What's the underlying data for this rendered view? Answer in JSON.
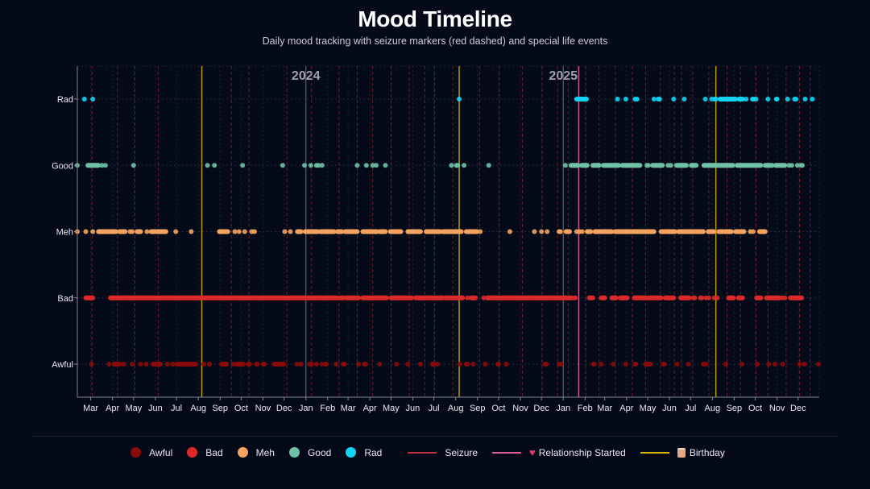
{
  "header": {
    "title": "Mood Timeline",
    "subtitle": "Daily mood tracking with seizure markers (red dashed) and special life events"
  },
  "chart_data": {
    "type": "scatter",
    "title": "Mood Timeline",
    "subtitle": "Daily mood tracking with seizure markers (red dashed) and special life events",
    "x_range": [
      "2023-02-10",
      "2025-12-31"
    ],
    "y_categories": [
      "Awful",
      "Bad",
      "Meh",
      "Good",
      "Rad"
    ],
    "x_tick_labels": [
      "Mar",
      "Apr",
      "May",
      "Jun",
      "Jul",
      "Aug",
      "Sep",
      "Oct",
      "Nov",
      "Dec",
      "Jan",
      "Feb",
      "Mar",
      "Apr",
      "May",
      "Jun",
      "Jul",
      "Aug",
      "Sep",
      "Oct",
      "Nov",
      "Dec",
      "Jan",
      "Feb",
      "Mar",
      "Apr",
      "May",
      "Jun",
      "Jul",
      "Aug",
      "Sep",
      "Oct",
      "Nov",
      "Dec"
    ],
    "x_ticks": [
      "2023-03-01",
      "2023-04-01",
      "2023-05-01",
      "2023-06-01",
      "2023-07-01",
      "2023-08-01",
      "2023-09-01",
      "2023-10-01",
      "2023-11-01",
      "2023-12-01",
      "2024-01-01",
      "2024-02-01",
      "2024-03-01",
      "2024-04-01",
      "2024-05-01",
      "2024-06-01",
      "2024-07-01",
      "2024-08-01",
      "2024-09-01",
      "2024-10-01",
      "2024-11-01",
      "2024-12-01",
      "2025-01-01",
      "2025-02-01",
      "2025-03-01",
      "2025-04-01",
      "2025-05-01",
      "2025-06-01",
      "2025-07-01",
      "2025-08-01",
      "2025-09-01",
      "2025-10-01",
      "2025-11-01",
      "2025-12-01"
    ],
    "year_markers": [
      {
        "label": "2024",
        "date": "2024-01-01"
      },
      {
        "label": "2025",
        "date": "2025-01-01"
      }
    ],
    "colors": {
      "Awful": "#8b0a0a",
      "Bad": "#dc2a2a",
      "Meh": "#f4a460",
      "Good": "#6fc2a6",
      "Rad": "#13d4f5",
      "Seizure": "#c0303a",
      "Relationship": "#e0609a",
      "Birthday": "#c9a800"
    },
    "series": [
      {
        "name": "Rad",
        "points_day_ranges": [
          [
            10,
            10
          ],
          [
            22,
            22
          ],
          [
            543,
            543
          ],
          [
            710,
            724
          ],
          [
            768,
            768
          ],
          [
            780,
            780
          ],
          [
            793,
            796
          ],
          [
            820,
            820
          ],
          [
            826,
            828
          ],
          [
            848,
            848
          ],
          [
            863,
            863
          ],
          [
            893,
            893
          ],
          [
            902,
            902
          ],
          [
            906,
            908
          ],
          [
            914,
            936
          ],
          [
            941,
            946
          ],
          [
            951,
            951
          ],
          [
            960,
            960
          ],
          [
            962,
            965
          ],
          [
            982,
            982
          ],
          [
            994,
            995
          ],
          [
            1010,
            1010
          ],
          [
            1020,
            1022
          ],
          [
            1035,
            1035
          ],
          [
            1045,
            1045
          ],
          [
            1064,
            1064
          ],
          [
            1094,
            1094
          ]
        ]
      },
      {
        "name": "Good",
        "points_day_ranges": [
          [
            0,
            0
          ],
          [
            15,
            30
          ],
          [
            35,
            35
          ],
          [
            40,
            40
          ],
          [
            80,
            80
          ],
          [
            185,
            185
          ],
          [
            195,
            195
          ],
          [
            235,
            235
          ],
          [
            292,
            292
          ],
          [
            323,
            323
          ],
          [
            332,
            332
          ],
          [
            340,
            343
          ],
          [
            348,
            348
          ],
          [
            398,
            398
          ],
          [
            411,
            411
          ],
          [
            420,
            420
          ],
          [
            425,
            425
          ],
          [
            438,
            438
          ],
          [
            532,
            532
          ],
          [
            539,
            541
          ],
          [
            550,
            550
          ],
          [
            585,
            585
          ],
          [
            694,
            694
          ],
          [
            702,
            712
          ],
          [
            717,
            725
          ],
          [
            733,
            742
          ],
          [
            748,
            770
          ],
          [
            775,
            800
          ],
          [
            810,
            812
          ],
          [
            818,
            832
          ],
          [
            840,
            844
          ],
          [
            852,
            866
          ],
          [
            873,
            880
          ],
          [
            891,
            932
          ],
          [
            938,
            972
          ],
          [
            978,
            988
          ],
          [
            993,
            1006
          ],
          [
            1012,
            1016
          ],
          [
            1024,
            1024
          ],
          [
            1029,
            1031
          ]
        ]
      },
      {
        "name": "Meh",
        "points_day_ranges": [
          [
            0,
            0
          ],
          [
            12,
            12
          ],
          [
            22,
            22
          ],
          [
            30,
            55
          ],
          [
            60,
            68
          ],
          [
            75,
            78
          ],
          [
            85,
            90
          ],
          [
            99,
            99
          ],
          [
            105,
            110
          ],
          [
            113,
            126
          ],
          [
            140,
            140
          ],
          [
            162,
            162
          ],
          [
            202,
            214
          ],
          [
            224,
            224
          ],
          [
            230,
            230
          ],
          [
            238,
            238
          ],
          [
            248,
            252
          ],
          [
            295,
            295
          ],
          [
            303,
            303
          ],
          [
            313,
            318
          ],
          [
            324,
            342
          ],
          [
            346,
            365
          ],
          [
            370,
            376
          ],
          [
            381,
            398
          ],
          [
            406,
            426
          ],
          [
            430,
            438
          ],
          [
            445,
            460
          ],
          [
            470,
            488
          ],
          [
            496,
            516
          ],
          [
            520,
            546
          ],
          [
            553,
            568
          ],
          [
            573,
            573
          ],
          [
            615,
            615
          ],
          [
            650,
            650
          ],
          [
            660,
            660
          ],
          [
            668,
            668
          ],
          [
            685,
            687
          ],
          [
            695,
            700
          ],
          [
            710,
            714
          ],
          [
            718,
            718
          ],
          [
            725,
            730
          ],
          [
            736,
            760
          ],
          [
            765,
            820
          ],
          [
            830,
            850
          ],
          [
            855,
            890
          ],
          [
            897,
            905
          ],
          [
            912,
            918
          ],
          [
            921,
            930
          ],
          [
            936,
            948
          ],
          [
            957,
            961
          ],
          [
            970,
            978
          ]
        ]
      },
      {
        "name": "Bad",
        "points_day_ranges": [
          [
            12,
            22
          ],
          [
            47,
            370
          ],
          [
            374,
            379
          ],
          [
            383,
            400
          ],
          [
            406,
            440
          ],
          [
            446,
            475
          ],
          [
            481,
            520
          ],
          [
            524,
            548
          ],
          [
            555,
            555
          ],
          [
            560,
            566
          ],
          [
            578,
            578
          ],
          [
            583,
            600
          ],
          [
            602,
            703
          ],
          [
            707,
            708
          ],
          [
            728,
            733
          ],
          [
            745,
            750
          ],
          [
            760,
            766
          ],
          [
            772,
            782
          ],
          [
            792,
            808
          ],
          [
            812,
            830
          ],
          [
            836,
            848
          ],
          [
            858,
            870
          ],
          [
            876,
            878
          ],
          [
            886,
            888
          ],
          [
            894,
            898
          ],
          [
            906,
            910
          ],
          [
            926,
            933
          ],
          [
            940,
            946
          ],
          [
            966,
            972
          ],
          [
            980,
            998
          ],
          [
            1002,
            1006
          ],
          [
            1014,
            1030
          ]
        ]
      },
      {
        "name": "Awful",
        "points_day_ranges": [
          [
            20,
            20
          ],
          [
            45,
            45
          ],
          [
            52,
            60
          ],
          [
            66,
            66
          ],
          [
            78,
            78
          ],
          [
            90,
            90
          ],
          [
            98,
            98
          ],
          [
            108,
            118
          ],
          [
            128,
            128
          ],
          [
            136,
            136
          ],
          [
            142,
            168
          ],
          [
            180,
            180
          ],
          [
            188,
            188
          ],
          [
            205,
            212
          ],
          [
            222,
            222
          ],
          [
            227,
            236
          ],
          [
            243,
            245
          ],
          [
            255,
            256
          ],
          [
            264,
            266
          ],
          [
            280,
            290
          ],
          [
            292,
            294
          ],
          [
            312,
            312
          ],
          [
            318,
            318
          ],
          [
            330,
            333
          ],
          [
            340,
            340
          ],
          [
            348,
            348
          ],
          [
            353,
            354
          ],
          [
            368,
            368
          ],
          [
            378,
            380
          ],
          [
            400,
            400
          ],
          [
            408,
            410
          ],
          [
            430,
            430
          ],
          [
            454,
            454
          ],
          [
            470,
            470
          ],
          [
            488,
            488
          ],
          [
            505,
            507
          ],
          [
            512,
            512
          ],
          [
            544,
            544
          ],
          [
            553,
            555
          ],
          [
            563,
            563
          ],
          [
            580,
            580
          ],
          [
            598,
            599
          ],
          [
            610,
            610
          ],
          [
            665,
            667
          ],
          [
            685,
            688
          ],
          [
            734,
            735
          ],
          [
            745,
            745
          ],
          [
            762,
            762
          ],
          [
            780,
            780
          ],
          [
            793,
            794
          ],
          [
            808,
            815
          ],
          [
            833,
            835
          ],
          [
            853,
            853
          ],
          [
            869,
            869
          ],
          [
            890,
            894
          ],
          [
            922,
            922
          ],
          [
            945,
            945
          ],
          [
            967,
            967
          ],
          [
            983,
            983
          ],
          [
            992,
            992
          ],
          [
            1003,
            1003
          ],
          [
            1027,
            1027
          ],
          [
            1034,
            1034
          ],
          [
            1054,
            1054
          ],
          [
            1064,
            1064
          ],
          [
            1081,
            1081
          ],
          [
            1097,
            1097
          ],
          [
            1112,
            1116
          ],
          [
            1131,
            1131
          ],
          [
            1145,
            1145
          ],
          [
            1155,
            1155
          ]
        ]
      }
    ],
    "seizure_dates": [
      "2023-03-03",
      "2023-04-08",
      "2023-05-03",
      "2023-06-05",
      "2023-09-17",
      "2023-10-12",
      "2023-12-05",
      "2024-01-09",
      "2024-02-17",
      "2024-03-14",
      "2024-04-05",
      "2024-05-01",
      "2024-05-27",
      "2024-06-18",
      "2024-07-02",
      "2024-07-28",
      "2024-09-04",
      "2024-10-02",
      "2024-11-04",
      "2024-12-02",
      "2024-12-24",
      "2025-01-08",
      "2025-02-02",
      "2025-02-21",
      "2025-03-16",
      "2025-04-09",
      "2025-04-28",
      "2025-05-19",
      "2025-06-08",
      "2025-06-18",
      "2025-07-04",
      "2025-07-27",
      "2025-08-06",
      "2025-08-22",
      "2025-09-10",
      "2025-10-02",
      "2025-10-19",
      "2025-11-14",
      "2025-12-03",
      "2025-12-18"
    ],
    "events": [
      {
        "type": "Birthday",
        "date": "2023-08-06"
      },
      {
        "type": "Birthday",
        "date": "2024-08-06"
      },
      {
        "type": "Relationship",
        "date": "2025-01-23"
      },
      {
        "type": "Birthday",
        "date": "2025-08-06"
      }
    ],
    "legend_position": "bottom"
  },
  "legend": {
    "items": [
      {
        "label": "Awful",
        "kind": "dot",
        "color": "#8b0a0a"
      },
      {
        "label": "Bad",
        "kind": "dot",
        "color": "#dc2a2a"
      },
      {
        "label": "Meh",
        "kind": "dot",
        "color": "#f4a460"
      },
      {
        "label": "Good",
        "kind": "dot",
        "color": "#6fc2a6"
      },
      {
        "label": "Rad",
        "kind": "dot",
        "color": "#13d4f5"
      },
      {
        "label": "Seizure",
        "kind": "line",
        "color": "#c0303a"
      },
      {
        "label": "Relationship Started",
        "kind": "line",
        "color": "#e0609a",
        "icon": "heart-icon"
      },
      {
        "label": "Birthday",
        "kind": "line",
        "color": "#c9a800",
        "icon": "cake-icon"
      }
    ]
  }
}
